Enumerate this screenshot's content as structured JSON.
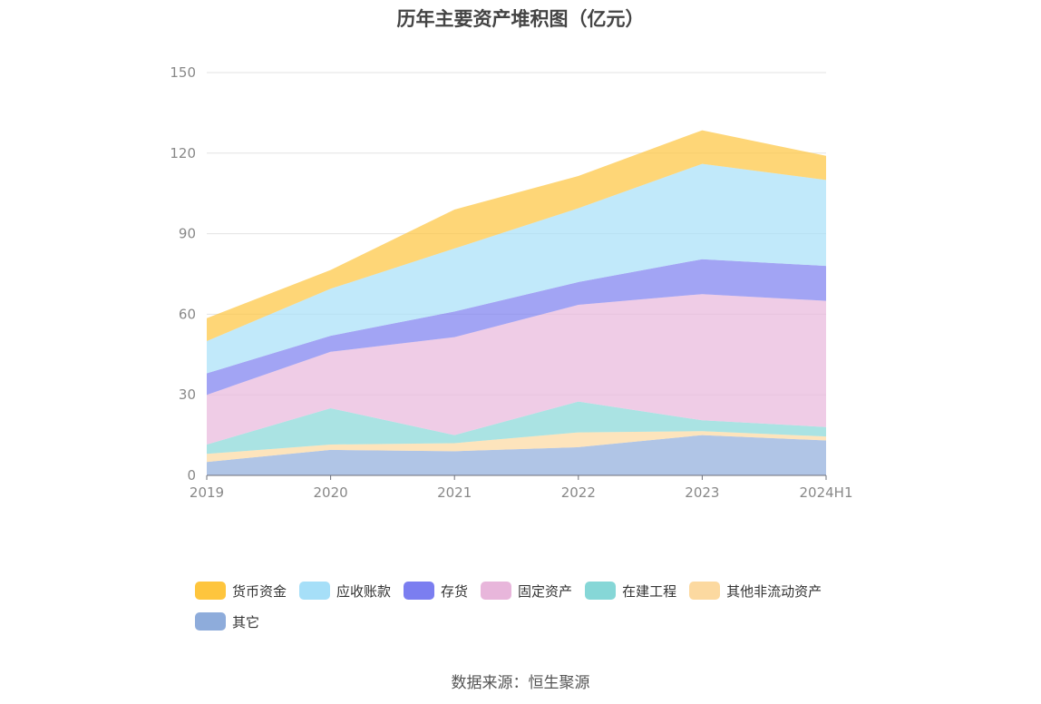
{
  "chart_data": {
    "type": "area",
    "stacked": true,
    "title": "历年主要资产堆积图（亿元）",
    "categories": [
      "2019",
      "2020",
      "2021",
      "2022",
      "2023",
      "2024H1"
    ],
    "ylim": [
      0,
      150
    ],
    "yticks": [
      0,
      30,
      60,
      90,
      120,
      150
    ],
    "grid": true,
    "legend_position": "bottom",
    "series": [
      {
        "name": "其它",
        "color": "#8eacdb",
        "values": [
          5,
          9.5,
          9,
          10.5,
          15,
          13
        ]
      },
      {
        "name": "其他非流动资产",
        "color": "#fcd9a0",
        "values": [
          3,
          2,
          3,
          5.5,
          1.5,
          1.5
        ]
      },
      {
        "name": "在建工程",
        "color": "#86d7d7",
        "values": [
          3.5,
          13.5,
          3,
          11.5,
          4,
          3.5
        ]
      },
      {
        "name": "固定资产",
        "color": "#e8b6db",
        "values": [
          18.5,
          21,
          36.5,
          36,
          47,
          47
        ]
      },
      {
        "name": "存货",
        "color": "#7b7ef0",
        "values": [
          8,
          6,
          9.5,
          8.5,
          13,
          13
        ]
      },
      {
        "name": "应收账款",
        "color": "#a6dff8",
        "values": [
          12,
          17.5,
          23.5,
          27.5,
          35.5,
          32
        ]
      },
      {
        "name": "货币资金",
        "color": "#fec53d",
        "values": [
          8.5,
          7,
          14.5,
          12,
          12.5,
          9
        ]
      }
    ],
    "legend_order": [
      "货币资金",
      "应收账款",
      "存货",
      "固定资产",
      "在建工程",
      "其他非流动资产",
      "其它"
    ]
  },
  "source": "数据来源：恒生聚源"
}
